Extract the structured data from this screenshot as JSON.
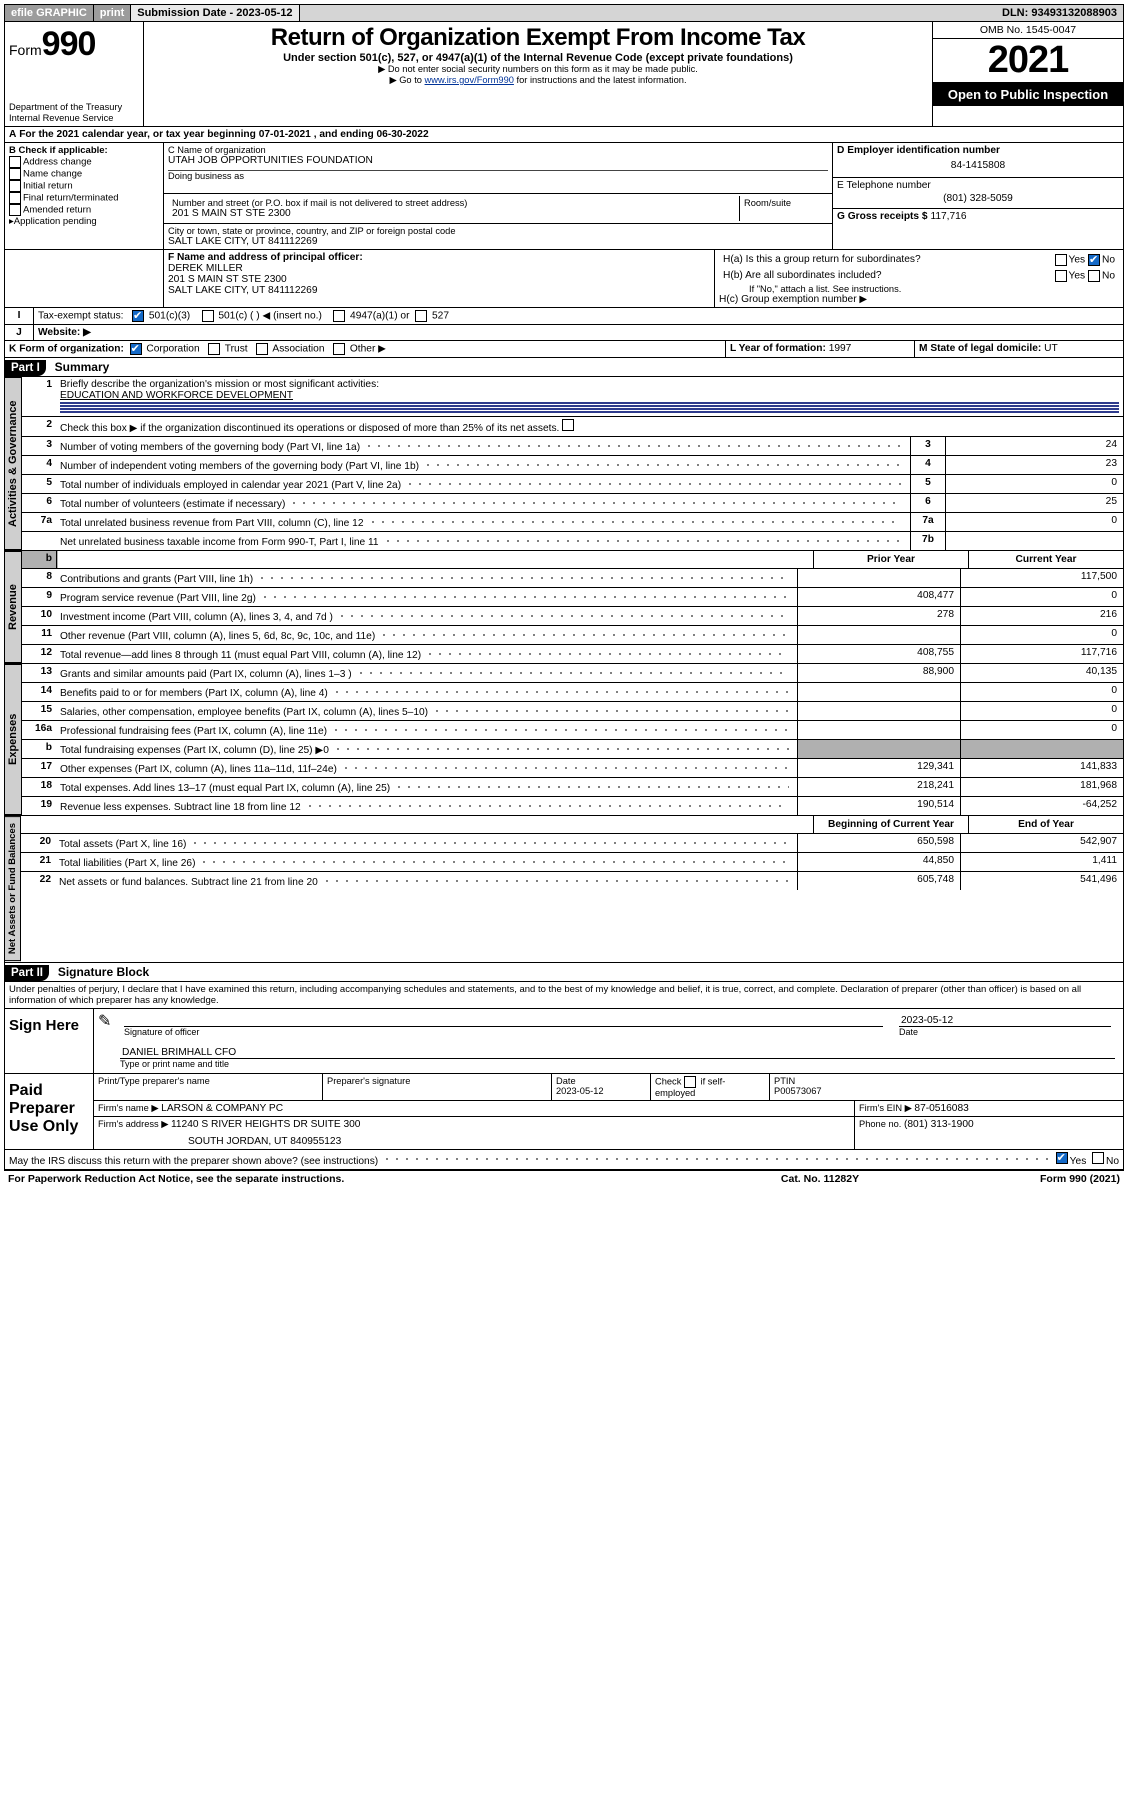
{
  "topbar": {
    "efile": "efile GRAPHIC",
    "print": "print",
    "subLabel": "Submission Date - ",
    "subDate": "2023-05-12",
    "dln": "DLN: 93493132088903"
  },
  "form": {
    "formWord": "Form",
    "num": "990",
    "title": "Return of Organization Exempt From Income Tax",
    "sub1": "Under section 501(c), 527, or 4947(a)(1) of the Internal Revenue Code (except private foundations)",
    "sub2": "Do not enter social security numbers on this form as it may be made public.",
    "sub3": "Go to ",
    "subLink": "www.irs.gov/Form990",
    "sub3b": " for instructions and the latest information.",
    "dept": "Department of the Treasury\nInternal Revenue Service",
    "omb": "OMB No. 1545-0047",
    "year": "2021",
    "otpi": "Open to Public Inspection"
  },
  "A": {
    "pre": "For the 2021 calendar year, or tax year beginning ",
    "start": "07-01-2021",
    "mid": " , and ending ",
    "end": "06-30-2022"
  },
  "B": {
    "head": "B Check if applicable:",
    "opts": [
      "Address change",
      "Name change",
      "Initial return",
      "Final return/terminated",
      "Amended return",
      "Application pending"
    ],
    "pendingArrow": "▸"
  },
  "C": {
    "nameLbl": "C Name of organization",
    "name": "UTAH JOB OPPORTUNITIES FOUNDATION",
    "dbaLbl": "Doing business as",
    "streetLbl": "Number and street (or P.O. box if mail is not delivered to street address)",
    "roomLbl": "Room/suite",
    "street": "201 S MAIN ST STE 2300",
    "cityLbl": "City or town, state or province, country, and ZIP or foreign postal code",
    "city": "SALT LAKE CITY, UT  841112269"
  },
  "D": {
    "lbl": "D Employer identification number",
    "val": "84-1415808"
  },
  "E": {
    "lbl": "E Telephone number",
    "val": "(801) 328-5059"
  },
  "G": {
    "lbl": "G Gross receipts $ ",
    "val": "117,716"
  },
  "F": {
    "lbl": "F Name and address of principal officer:",
    "name": "DEREK MILLER",
    "addr1": "201 S MAIN ST STE 2300",
    "addr2": "SALT LAKE CITY, UT  841112269"
  },
  "H": {
    "a": "H(a)  Is this a group return for subordinates?",
    "aYes": "Yes",
    "aNo": "No",
    "b": "H(b)  Are all subordinates included?",
    "bNote": "If \"No,\" attach a list. See instructions.",
    "c": "H(c)  Group exemption number ▶"
  },
  "I": {
    "lbl": "Tax-exempt status:",
    "c3": "501(c)(3)",
    "cO": "501(c) (   ) ◀ (insert no.)",
    "c47": "4947(a)(1) or",
    "c527": "527"
  },
  "J": {
    "lbl": "Website: ▶",
    "val": ""
  },
  "K": {
    "lbl": "K Form of organization:",
    "opts": [
      "Corporation",
      "Trust",
      "Association",
      "Other ▶"
    ]
  },
  "L": {
    "lbl": "L Year of formation: ",
    "val": "1997"
  },
  "M": {
    "lbl": "M State of legal domicile: ",
    "val": "UT"
  },
  "partI": {
    "tag": "Part I",
    "title": "Summary"
  },
  "summary": {
    "l1lbl": "Briefly describe the organization's mission or most significant activities:",
    "l1": "EDUCATION AND WORKFORCE DEVELOPMENT",
    "l2": "Check this box ▶        if the organization discontinued its operations or disposed of more than 25% of its net assets.",
    "rowsGov": [
      {
        "n": "3",
        "d": "Number of voting members of the governing body (Part VI, line 1a)",
        "b": "3",
        "v": "24"
      },
      {
        "n": "4",
        "d": "Number of independent voting members of the governing body (Part VI, line 1b)",
        "b": "4",
        "v": "23"
      },
      {
        "n": "5",
        "d": "Total number of individuals employed in calendar year 2021 (Part V, line 2a)",
        "b": "5",
        "v": "0"
      },
      {
        "n": "6",
        "d": "Total number of volunteers (estimate if necessary)",
        "b": "6",
        "v": "25"
      },
      {
        "n": "7a",
        "d": "Total unrelated business revenue from Part VIII, column (C), line 12",
        "b": "7a",
        "v": "0"
      },
      {
        "n": "",
        "d": "Net unrelated business taxable income from Form 990-T, Part I, line 11",
        "b": "7b",
        "v": ""
      }
    ],
    "headPrior": "Prior Year",
    "headCurr": "Current Year",
    "rev": [
      {
        "n": "8",
        "d": "Contributions and grants (Part VIII, line 1h)",
        "p": "",
        "c": "117,500"
      },
      {
        "n": "9",
        "d": "Program service revenue (Part VIII, line 2g)",
        "p": "408,477",
        "c": "0"
      },
      {
        "n": "10",
        "d": "Investment income (Part VIII, column (A), lines 3, 4, and 7d )",
        "p": "278",
        "c": "216"
      },
      {
        "n": "11",
        "d": "Other revenue (Part VIII, column (A), lines 5, 6d, 8c, 9c, 10c, and 11e)",
        "p": "",
        "c": "0"
      },
      {
        "n": "12",
        "d": "Total revenue—add lines 8 through 11 (must equal Part VIII, column (A), line 12)",
        "p": "408,755",
        "c": "117,716"
      }
    ],
    "exp": [
      {
        "n": "13",
        "d": "Grants and similar amounts paid (Part IX, column (A), lines 1–3 )",
        "p": "88,900",
        "c": "40,135"
      },
      {
        "n": "14",
        "d": "Benefits paid to or for members (Part IX, column (A), line 4)",
        "p": "",
        "c": "0"
      },
      {
        "n": "15",
        "d": "Salaries, other compensation, employee benefits (Part IX, column (A), lines 5–10)",
        "p": "",
        "c": "0"
      },
      {
        "n": "16a",
        "d": "Professional fundraising fees (Part IX, column (A), line 11e)",
        "p": "",
        "c": "0"
      },
      {
        "n": "b",
        "d": "Total fundraising expenses (Part IX, column (D), line 25) ▶0",
        "p": "SHADE",
        "c": "SHADE"
      },
      {
        "n": "17",
        "d": "Other expenses (Part IX, column (A), lines 11a–11d, 11f–24e)",
        "p": "129,341",
        "c": "141,833"
      },
      {
        "n": "18",
        "d": "Total expenses. Add lines 13–17 (must equal Part IX, column (A), line 25)",
        "p": "218,241",
        "c": "181,968"
      },
      {
        "n": "19",
        "d": "Revenue less expenses. Subtract line 18 from line 12",
        "p": "190,514",
        "c": "-64,252"
      }
    ],
    "headBeg": "Beginning of Current Year",
    "headEnd": "End of Year",
    "net": [
      {
        "n": "20",
        "d": "Total assets (Part X, line 16)",
        "p": "650,598",
        "c": "542,907"
      },
      {
        "n": "21",
        "d": "Total liabilities (Part X, line 26)",
        "p": "44,850",
        "c": "1,411"
      },
      {
        "n": "22",
        "d": "Net assets or fund balances. Subtract line 21 from line 20",
        "p": "605,748",
        "c": "541,496"
      }
    ],
    "tabGov": "Activities & Governance",
    "tabRev": "Revenue",
    "tabExp": "Expenses",
    "tabNet": "Net Assets or Fund Balances"
  },
  "partII": {
    "tag": "Part II",
    "title": "Signature Block"
  },
  "penalty": "Under penalties of perjury, I declare that I have examined this return, including accompanying schedules and statements, and to the best of my knowledge and belief, it is true, correct, and complete. Declaration of preparer (other than officer) is based on all information of which preparer has any knowledge.",
  "sign": {
    "left": "Sign Here",
    "sigOfficer": "Signature of officer",
    "date": "2023-05-12",
    "dateLbl": "Date",
    "name": "DANIEL BRIMHALL CFO",
    "nameLbl": "Type or print name and title"
  },
  "paid": {
    "left": "Paid Preparer Use Only",
    "h1": "Print/Type preparer's name",
    "h2": "Preparer's signature",
    "h3": "Date",
    "h3v": "2023-05-12",
    "h4": "Check        if self-employed",
    "h5": "PTIN",
    "h5v": "P00573067",
    "firmLbl": "Firm's name    ▶ ",
    "firm": "LARSON & COMPANY PC",
    "einLbl": "Firm's EIN ▶ ",
    "ein": "87-0516083",
    "addrLbl": "Firm's address ▶ ",
    "addr1": "11240 S RIVER HEIGHTS DR SUITE 300",
    "addr2": "SOUTH JORDAN, UT  840955123",
    "phoneLbl": "Phone no. ",
    "phone": "(801) 313-1900"
  },
  "discuss": {
    "q": "May the IRS discuss this return with the preparer shown above? (see instructions)",
    "yes": "Yes",
    "no": "No"
  },
  "footer": {
    "left": "For Paperwork Reduction Act Notice, see the separate instructions.",
    "mid": "Cat. No. 11282Y",
    "right": "Form 990 (2021)"
  },
  "style": {
    "accent": "#1469c7",
    "ruleBlue": "#2e3b8c"
  }
}
